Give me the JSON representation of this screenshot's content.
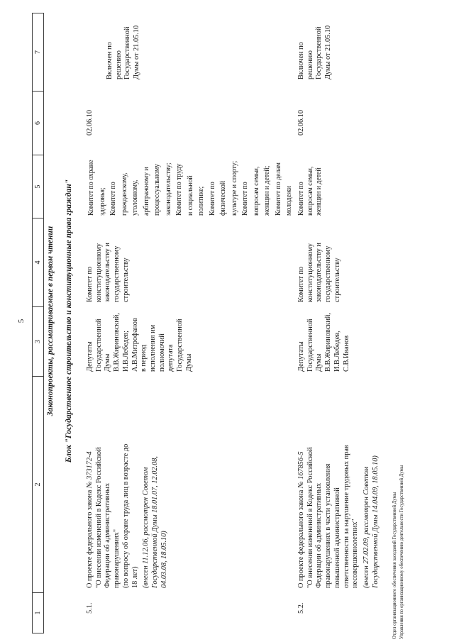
{
  "page": {
    "number": "5",
    "section_title": "Законопроекты, рассматриваемые в первом чтении",
    "block_title": "Блок \"Государственное строительство и конституционные права граждан\"",
    "footer_line1": "Отдел организационного обеспечения заседаний Государственной Думы",
    "footer_line2": "Управления по организационному обеспечению деятельности Государственной Думы"
  },
  "table": {
    "column_numbers": [
      "1",
      "2",
      "3",
      "4",
      "5",
      "6",
      "7"
    ],
    "rows": [
      {
        "num": "5.1.",
        "bill_intro": "О проекте федерального закона ",
        "bill_number": "№ 373172-4",
        "bill_title": "\"О внесении изменений в Кодекс Российской\nФедерации об административных\nправонарушениях\"\n(по вопросу об охране труда лиц в возрасте до\n18 лет)",
        "bill_submitted": "(внесен 11.12.06, рассмотрен Советом\nГосударственной Думы 18.01.07, 12.02.08,\n04.03.08, 18.05.10)",
        "initiators": "Депутаты\nГосударственной\nДумы\nВ.В.Жириновский,\nИ.В.Лебедев;\nА.В.Митрофанов\nв период\nисполнения им\nполномочий\nдепутата\nГосударственной\nДумы",
        "responsible_committee": "Комитет по\nконституционному\nзаконодательству и\nгосударственному\nстроительству",
        "co_committees": "Комитет по охране\nздоровья;\nКомитет по\nгражданскому,\nуголовному,\nарбитражному и\nпроцессуальному\nзаконодательству;\nКомитет по труду\nи социальной\nполитике;\nКомитет по\nфизической\nкультуре и спорту;\nКомитет по\nвопросам семьи,\nженщин и детей;\nКомитет по делам\nмолодежи",
        "date": "02.06.10",
        "decision": "Включен по\nрешению\nГосударственной\nДумы от 21.05.10"
      },
      {
        "num": "5.2.",
        "bill_intro": "О проекте федерального закона ",
        "bill_number": "№ 167856-5",
        "bill_title": "\"О внесении изменений в Кодекс Российской\nФедерации об административных\nправонарушениях в части установления\nповышенной административной\nответственности за нарушение трудовых прав\nнесовершеннолетних\"",
        "bill_submitted": "(внесен 27.02.09, рассмотрен Советом\nГосударственной Думы 14.04.09, 18.05.10)",
        "initiators": "Депутаты\nГосударственной\nДумы\nВ.В.Жириновский,\nИ.В.Лебедев,\nС.В.Иванов",
        "responsible_committee": "Комитет по\nконституционному\nзаконодательству и\nгосударственному\nстроительству",
        "co_committees": "Комитет по\nвопросам семьи,\nженщин и детей",
        "date": "02.06.10",
        "decision": "Включен по\nрешению\nГосударственной\nДумы от 21.05.10"
      }
    ]
  }
}
